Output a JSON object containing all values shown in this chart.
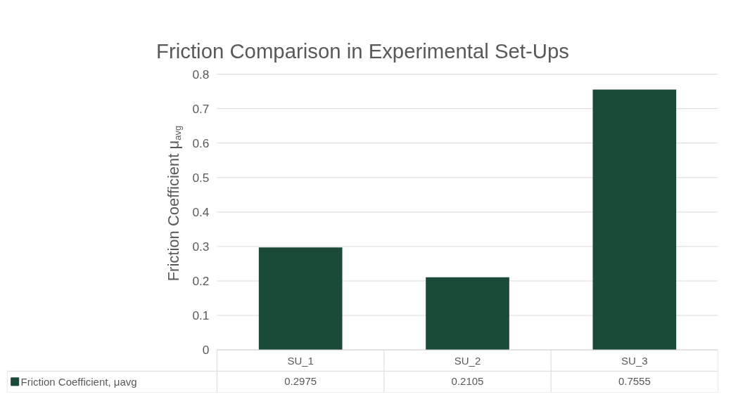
{
  "chart_data": {
    "type": "bar",
    "title": "Friction Comparison in Experimental Set-Ups",
    "ylabel": "Friction Coefficient μ$_{avg}$",
    "categories": [
      "SU_1",
      "SU_2",
      "SU_3"
    ],
    "series": [
      {
        "name": "Friction Coefficient, μavg",
        "color": "#1b4a38",
        "values": [
          0.2975,
          0.2105,
          0.7555
        ]
      }
    ],
    "ylim": [
      0,
      0.8
    ],
    "yticks": [
      0,
      0.1,
      0.2,
      0.3,
      0.4,
      0.5,
      0.6,
      0.7,
      0.8
    ],
    "grid": "y",
    "data_labels": true,
    "legend": "bottom"
  }
}
